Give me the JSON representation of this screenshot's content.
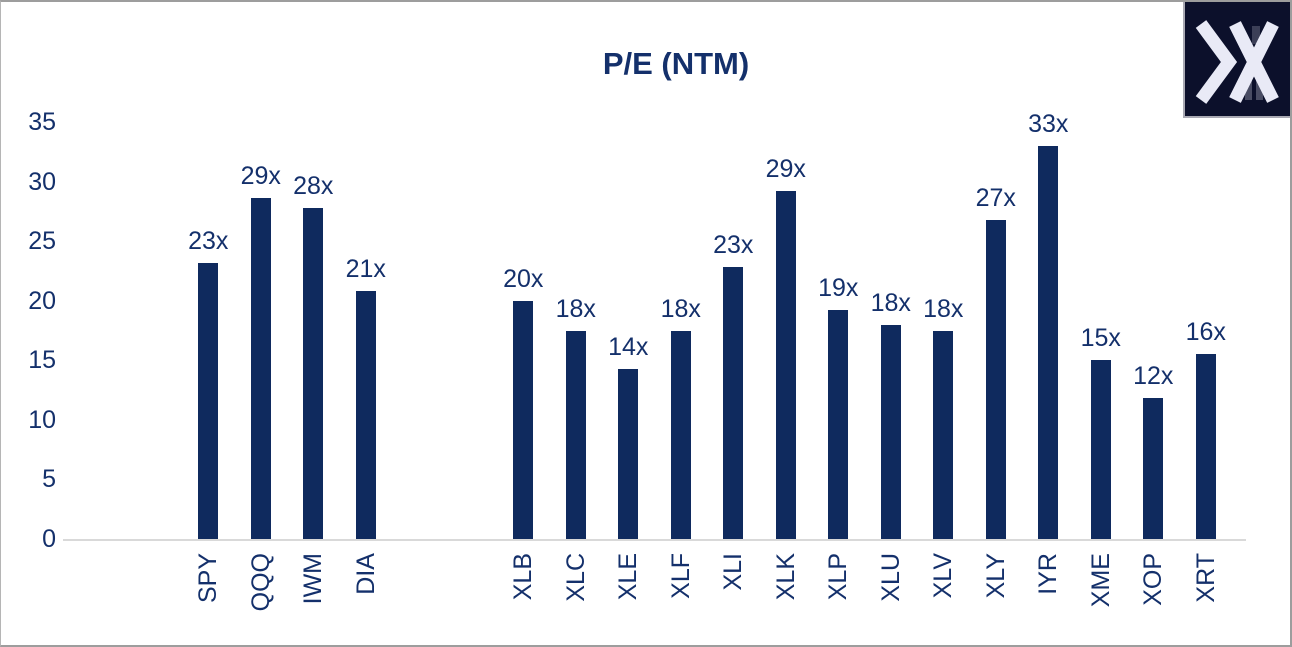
{
  "title": "P/E (NTM)",
  "logo": {
    "icon": "brand-x-logo"
  },
  "colors": {
    "bar": "#0f2a5e",
    "text": "#14306b",
    "axis_line": "#d9d9d9",
    "frame_border": "#9d9d9d",
    "logo_bg": "#0c102b",
    "logo_glyph": "#e9eaf6"
  },
  "chart_data": {
    "type": "bar",
    "title": "P/E (NTM)",
    "categories": [
      "SPY",
      "QQQ",
      "IWM",
      "DIA",
      "XLB",
      "XLC",
      "XLE",
      "XLF",
      "XLI",
      "XLK",
      "XLP",
      "XLU",
      "XLV",
      "XLY",
      "IYR",
      "XME",
      "XOP",
      "XRT"
    ],
    "values": [
      23.2,
      28.6,
      27.8,
      20.8,
      20.0,
      17.5,
      14.3,
      17.5,
      22.8,
      29.2,
      19.2,
      18.0,
      17.5,
      26.8,
      33.0,
      15.0,
      11.8,
      15.5
    ],
    "data_labels": [
      "23x",
      "29x",
      "28x",
      "21x",
      "20x",
      "18x",
      "14x",
      "18x",
      "23x",
      "29x",
      "19x",
      "18x",
      "18x",
      "27x",
      "33x",
      "15x",
      "12x",
      "16x"
    ],
    "gap_after_index": 3,
    "gap_slots": 2,
    "xlabel": "",
    "ylabel": "",
    "ylim": [
      0,
      35
    ],
    "yticks": [
      0,
      5,
      10,
      15,
      20,
      25,
      30,
      35
    ],
    "grid": false,
    "legend": "none",
    "bar_color": "#0f2a5e"
  }
}
